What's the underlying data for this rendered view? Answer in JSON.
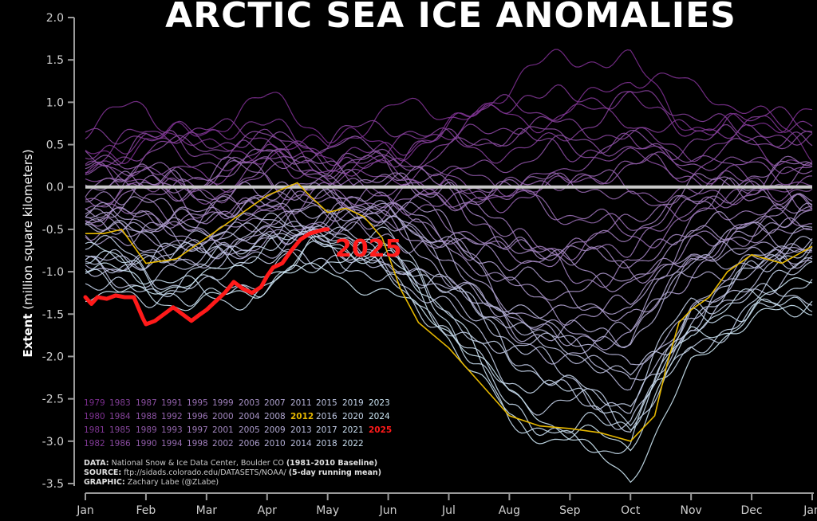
{
  "chart_data": {
    "type": "line",
    "title": "ARCTIC SEA ICE ANOMALIES",
    "ylabel_bold": "Extent",
    "ylabel_rest": "(million square kilometers)",
    "ylim": [
      -3.5,
      2.0
    ],
    "yticks": [
      "2.0",
      "1.5",
      "1.0",
      "0.5",
      "0.0",
      "-0.5",
      "-1.0",
      "-1.5",
      "-2.0",
      "-2.5",
      "-3.0",
      "-3.5"
    ],
    "xticks": [
      "Jan",
      "Feb",
      "Mar",
      "Apr",
      "May",
      "Jun",
      "Jul",
      "Aug",
      "Sep",
      "Oct",
      "Nov",
      "Dec",
      "Jan"
    ],
    "baseline": 0.0,
    "grid": false,
    "legend_placement": "bottom-left",
    "highlight_label": "2025",
    "colors": {
      "background": "#000000",
      "baseline": "#c8c8c8",
      "highlight_2025": "#ff1a1a",
      "highlight_2012": "#e6b800",
      "early_years": "#7b2d8e",
      "late_years": "#cde8f5"
    },
    "legend_rows": [
      [
        "1979",
        "1983",
        "1987",
        "1991",
        "1995",
        "1999",
        "2003",
        "2007",
        "2011",
        "2015",
        "2019",
        "2023"
      ],
      [
        "1980",
        "1984",
        "1988",
        "1992",
        "1996",
        "2000",
        "2004",
        "2008",
        "2012",
        "2016",
        "2020",
        "2024"
      ],
      [
        "1981",
        "1985",
        "1989",
        "1993",
        "1997",
        "2001",
        "2005",
        "2009",
        "2013",
        "2017",
        "2021",
        "2025"
      ],
      [
        "1982",
        "1986",
        "1990",
        "1994",
        "1998",
        "2002",
        "2006",
        "2010",
        "2014",
        "2018",
        "2022"
      ]
    ],
    "series_2025": {
      "name": "2025",
      "x": [
        0,
        0.1,
        0.2,
        0.35,
        0.5,
        0.65,
        0.8,
        0.95,
        1.0,
        1.15,
        1.3,
        1.45,
        1.6,
        1.75,
        1.9,
        2.0,
        2.15,
        2.3,
        2.45,
        2.6,
        2.75,
        2.9,
        3.0,
        3.1,
        3.25,
        3.4,
        3.55,
        3.7,
        3.85,
        3.95,
        4.0
      ],
      "y": [
        -1.3,
        -1.38,
        -1.3,
        -1.32,
        -1.28,
        -1.3,
        -1.3,
        -1.55,
        -1.62,
        -1.58,
        -1.5,
        -1.42,
        -1.5,
        -1.58,
        -1.5,
        -1.45,
        -1.35,
        -1.25,
        -1.12,
        -1.2,
        -1.25,
        -1.18,
        -1.05,
        -0.95,
        -0.9,
        -0.75,
        -0.62,
        -0.55,
        -0.52,
        -0.5,
        -0.5
      ]
    },
    "series_2012": {
      "name": "2012",
      "x": [
        0,
        0.3,
        0.6,
        1.0,
        1.5,
        2.0,
        2.5,
        3.0,
        3.5,
        3.7,
        4.0,
        4.3,
        4.6,
        4.9,
        5.2,
        5.5,
        6.0,
        6.5,
        7.0,
        7.5,
        8.0,
        8.5,
        9.0,
        9.4,
        9.6,
        9.8,
        10.0,
        10.3,
        10.6,
        11.0,
        11.5,
        12.0
      ],
      "y": [
        -0.55,
        -0.55,
        -0.5,
        -0.9,
        -0.85,
        -0.6,
        -0.35,
        -0.1,
        0.05,
        -0.1,
        -0.3,
        -0.25,
        -0.35,
        -0.6,
        -1.2,
        -1.6,
        -1.9,
        -2.3,
        -2.7,
        -2.82,
        -2.85,
        -2.9,
        -3.0,
        -2.7,
        -2.1,
        -1.6,
        -1.45,
        -1.3,
        -1.0,
        -0.8,
        -0.9,
        -0.7
      ]
    },
    "envelope_x": [
      0,
      1,
      2,
      3,
      4,
      5,
      6,
      7,
      8,
      9,
      10,
      11,
      12
    ],
    "envelope_high": [
      0.55,
      0.8,
      0.6,
      0.75,
      0.55,
      0.7,
      0.85,
      1.1,
      1.25,
      1.45,
      1.0,
      0.9,
      0.7
    ],
    "envelope_low": [
      -1.1,
      -1.25,
      -1.2,
      -1.05,
      -0.9,
      -1.1,
      -1.7,
      -2.6,
      -3.0,
      -3.3,
      -2.0,
      -1.5,
      -1.2
    ],
    "footer": {
      "data_label": "DATA:",
      "data_text": "National Snow & Ice Data Center, Boulder CO",
      "data_note": "(1981-2010 Baseline)",
      "source_label": "SOURCE:",
      "source_text": "ftp://sidads.colorado.edu/DATASETS/NOAA/",
      "source_note": "(5-day running mean)",
      "graphic_label": "GRAPHIC:",
      "graphic_text": "Zachary Labe (@ZLabe)"
    }
  }
}
